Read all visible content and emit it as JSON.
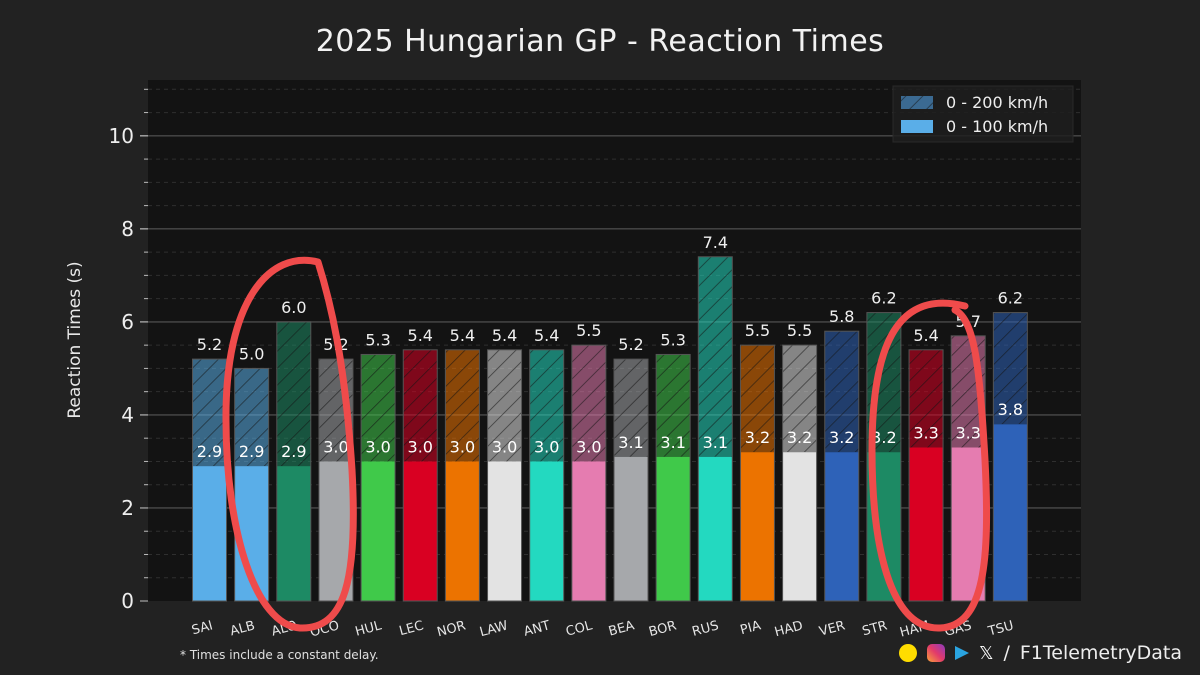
{
  "title": "2025 Hungarian GP - Reaction Times",
  "footnote": "* Times include a constant delay.",
  "credit": {
    "separator": "/",
    "handle": "F1TelemetryData",
    "x_glyph": "𝕏"
  },
  "chart_data": {
    "type": "bar",
    "title": "2025 Hungarian GP - Reaction Times",
    "xlabel": "",
    "ylabel": "Reaction Times (s)",
    "ylim": [
      0,
      11.2
    ],
    "yticks": [
      0,
      2,
      4,
      6,
      8,
      10
    ],
    "grid": true,
    "legend_position": "top-right",
    "categories": [
      "SAI",
      "ALB",
      "ALO",
      "OCO",
      "HUL",
      "LEC",
      "NOR",
      "LAW",
      "ANT",
      "COL",
      "BEA",
      "BOR",
      "RUS",
      "PIA",
      "HAD",
      "VER",
      "STR",
      "HAM",
      "GAS",
      "TSU"
    ],
    "team_colors": [
      "#5aaee8",
      "#5aaee8",
      "#1d8a64",
      "#a6a8ab",
      "#40c94a",
      "#d90022",
      "#ec7300",
      "#e3e3e3",
      "#23d9c0",
      "#e57cb0",
      "#a6a8ab",
      "#40c94a",
      "#23d9c0",
      "#ec7300",
      "#e3e3e3",
      "#2e62b8",
      "#1d8a64",
      "#d90022",
      "#e57cb0",
      "#2e62b8"
    ],
    "series": [
      {
        "name": "0 - 200 km/h",
        "hatched": true,
        "values": [
          5.2,
          5.0,
          6.0,
          5.2,
          5.3,
          5.4,
          5.4,
          5.4,
          5.4,
          5.5,
          5.2,
          5.3,
          7.4,
          5.5,
          5.5,
          5.8,
          6.2,
          5.4,
          5.7,
          6.2
        ]
      },
      {
        "name": "0 - 100 km/h",
        "hatched": false,
        "values": [
          2.9,
          2.9,
          2.9,
          3.0,
          3.0,
          3.0,
          3.0,
          3.0,
          3.0,
          3.0,
          3.1,
          3.1,
          3.1,
          3.2,
          3.2,
          3.2,
          3.2,
          3.3,
          3.3,
          3.8
        ]
      }
    ],
    "legend_colors": {
      "0 - 200 km/h": "#3b6a92",
      "0 - 100 km/h": "#5aaee8"
    },
    "annotations": [
      "red hand-drawn circle around ALB, ALO, OCO",
      "red hand-drawn circle around STR, HAM, GAS"
    ]
  }
}
